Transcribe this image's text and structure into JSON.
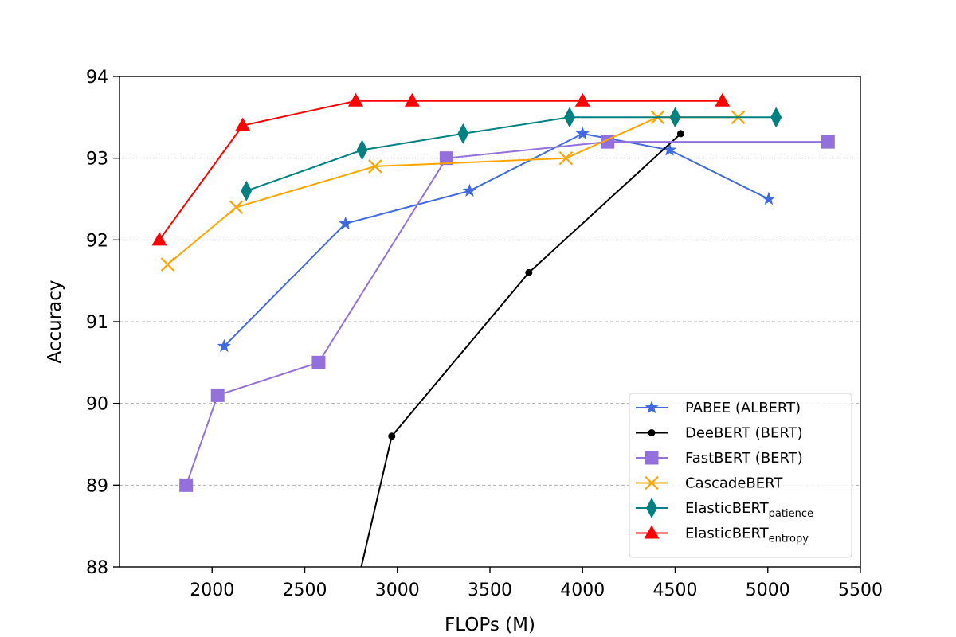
{
  "chart_data": {
    "type": "line",
    "title": "",
    "xlabel": "FLOPs (M)",
    "ylabel": "Accuracy",
    "xlim": [
      1500,
      5500
    ],
    "ylim": [
      88,
      94
    ],
    "xticks": [
      2000,
      2500,
      3000,
      3500,
      4000,
      4500,
      5000,
      5500
    ],
    "yticks": [
      88,
      89,
      90,
      91,
      92,
      93,
      94
    ],
    "grid": "horizontal-dashed",
    "legend_position": "lower-right",
    "series": [
      {
        "name": "PABEE (ALBERT)",
        "label_main": "PABEE (ALBERT)",
        "label_sub": "",
        "color": "#4169e1",
        "marker": "star",
        "x": [
          2065,
          2720,
          3390,
          4000,
          4470,
          5005
        ],
        "y": [
          90.7,
          92.2,
          92.6,
          93.3,
          93.1,
          92.5
        ]
      },
      {
        "name": "DeeBERT (BERT)",
        "label_main": "DeeBERT (BERT)",
        "label_sub": "",
        "color": "#000000",
        "marker": "dot",
        "x": [
          2800,
          2970,
          3710,
          4530
        ],
        "y": [
          87.95,
          89.6,
          91.6,
          93.3
        ]
      },
      {
        "name": "FastBERT (BERT)",
        "label_main": "FastBERT (BERT)",
        "label_sub": "",
        "color": "#9370db",
        "marker": "square",
        "x": [
          1860,
          2030,
          2575,
          3265,
          4135,
          5325
        ],
        "y": [
          89.0,
          90.1,
          90.5,
          93.0,
          93.2,
          93.2
        ]
      },
      {
        "name": "CascadeBERT",
        "label_main": "CascadeBERT",
        "label_sub": "",
        "color": "#ffa500",
        "marker": "x",
        "x": [
          1760,
          2130,
          2880,
          3910,
          4405,
          4840
        ],
        "y": [
          91.7,
          92.4,
          92.9,
          93.0,
          93.5,
          93.5
        ]
      },
      {
        "name": "ElasticBERTpatience",
        "label_main": "ElasticBERT",
        "label_sub": "patience",
        "color": "#008080",
        "marker": "thin-diamond",
        "x": [
          2185,
          2810,
          3355,
          3930,
          4500,
          5045
        ],
        "y": [
          92.6,
          93.1,
          93.3,
          93.5,
          93.5,
          93.5
        ]
      },
      {
        "name": "ElasticBERTentropy",
        "label_main": "ElasticBERT",
        "label_sub": "entropy",
        "color": "#ff0000",
        "marker": "triangle",
        "x": [
          1715,
          2165,
          2775,
          3080,
          4000,
          4755
        ],
        "y": [
          92.0,
          93.4,
          93.7,
          93.7,
          93.7,
          93.7
        ]
      }
    ]
  }
}
